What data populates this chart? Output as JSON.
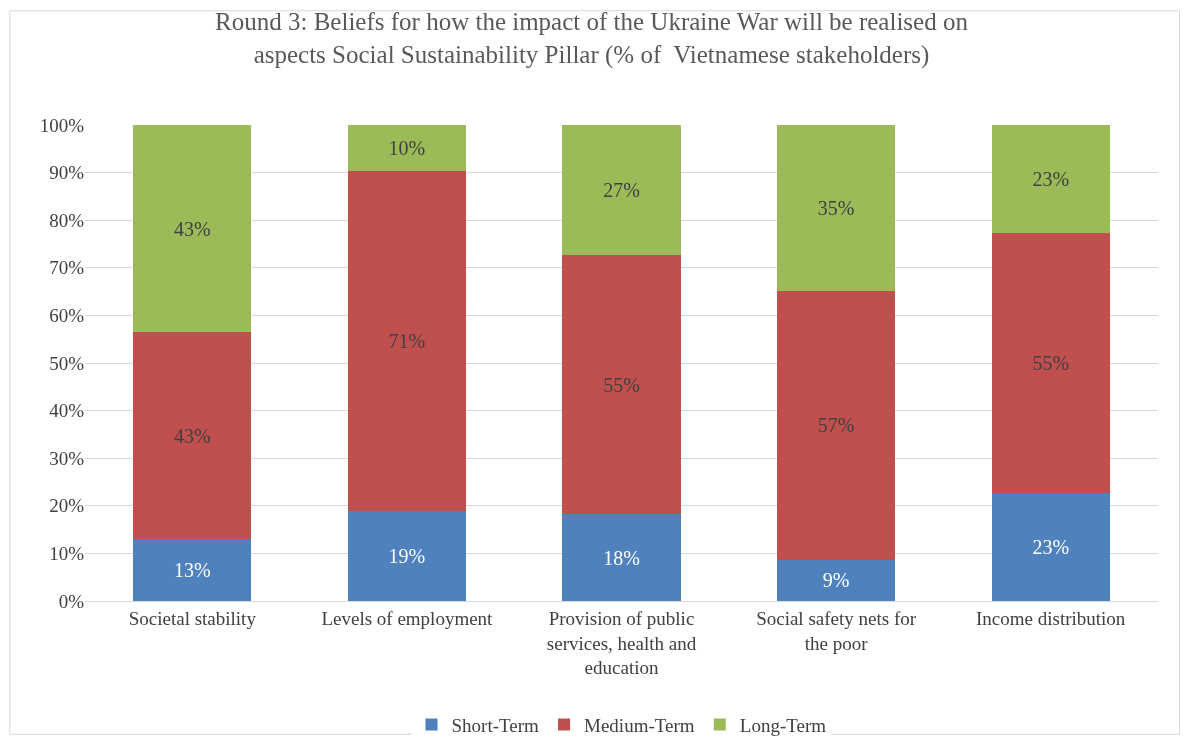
{
  "chart_data": {
    "type": "bar",
    "stacked": true,
    "title": "Round 3: Beliefs for how the impact of the Ukraine War will be realised on aspects Social Sustainability Pillar (% of  Vietnamese stakeholders)",
    "categories": [
      "Societal stability",
      "Levels of employment",
      "Provision of public services, health and education",
      "Social safety nets for the poor",
      "Income distribution"
    ],
    "series": [
      {
        "name": "Short-Term",
        "color": "#4f81bd",
        "values": [
          13.0,
          19.0,
          18.2,
          8.7,
          22.7
        ],
        "value_labels": [
          "13%",
          "19%",
          "18%",
          "9%",
          "23%"
        ]
      },
      {
        "name": "Medium-Term",
        "color": "#c0504d",
        "values": [
          43.5,
          71.4,
          54.5,
          56.5,
          54.6
        ],
        "value_labels": [
          "43%",
          "71%",
          "55%",
          "57%",
          "55%"
        ]
      },
      {
        "name": "Long-Term",
        "color": "#9bbb59",
        "values": [
          43.5,
          9.6,
          27.3,
          34.8,
          22.7
        ],
        "value_labels": [
          "43%",
          "10%",
          "27%",
          "35%",
          "23%"
        ]
      }
    ],
    "ylim": [
      0,
      100
    ],
    "yticks": [
      {
        "value": 0,
        "label": "0%"
      },
      {
        "value": 10,
        "label": "10%"
      },
      {
        "value": 20,
        "label": "20%"
      },
      {
        "value": 30,
        "label": "30%"
      },
      {
        "value": 40,
        "label": "40%"
      },
      {
        "value": 50,
        "label": "50%"
      },
      {
        "value": 60,
        "label": "60%"
      },
      {
        "value": 70,
        "label": "70%"
      },
      {
        "value": 80,
        "label": "80%"
      },
      {
        "value": 90,
        "label": "90%"
      },
      {
        "value": 100,
        "label": "100%"
      }
    ],
    "grid": "y",
    "legend": "bottom"
  }
}
